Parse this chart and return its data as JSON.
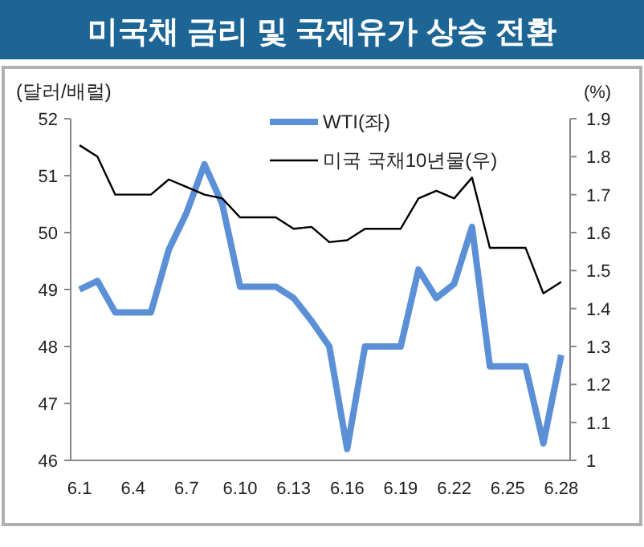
{
  "chart_data": {
    "type": "line",
    "title": "미국채 금리 및 국제유가 상승 전환",
    "ylabel": "(달러/배럴)",
    "y2label": "(%)",
    "categories": [
      "6.1",
      null,
      null,
      "6.4",
      null,
      null,
      "6.7",
      null,
      null,
      "6.10",
      null,
      null,
      "6.13",
      null,
      null,
      "6.16",
      null,
      null,
      "6.19",
      null,
      null,
      "6.22",
      null,
      null,
      "6.25",
      null,
      null,
      "6.28"
    ],
    "series": [
      {
        "name": "WTI(좌)",
        "color": "#5b8fd6",
        "values": [
          49.0,
          49.15,
          48.6,
          48.6,
          48.6,
          49.7,
          50.35,
          51.2,
          50.5,
          49.05,
          49.05,
          49.05,
          48.85,
          48.45,
          48.0,
          46.2,
          48.0,
          48.0,
          48.0,
          49.35,
          48.85,
          49.1,
          50.1,
          47.65,
          47.65,
          47.65,
          46.3,
          47.85
        ]
      },
      {
        "name": "미국 국채10년물(우)",
        "color": "#000000",
        "axis": "y2",
        "values": [
          1.83,
          1.8,
          1.7,
          1.7,
          1.7,
          1.74,
          1.72,
          1.7,
          1.69,
          1.64,
          1.64,
          1.64,
          1.61,
          1.615,
          1.575,
          1.58,
          1.61,
          1.61,
          1.61,
          1.69,
          1.71,
          1.69,
          1.745,
          1.56,
          1.56,
          1.56,
          1.44,
          1.47
        ]
      }
    ],
    "ylim": [
      46,
      52
    ],
    "yticks": [
      46,
      47,
      48,
      49,
      50,
      51,
      52
    ],
    "y2lim": [
      1,
      1.9
    ],
    "y2ticks": [
      1,
      1.1,
      1.2,
      1.3,
      1.4,
      1.5,
      1.6,
      1.7,
      1.8,
      1.9
    ],
    "legend": "top right"
  }
}
